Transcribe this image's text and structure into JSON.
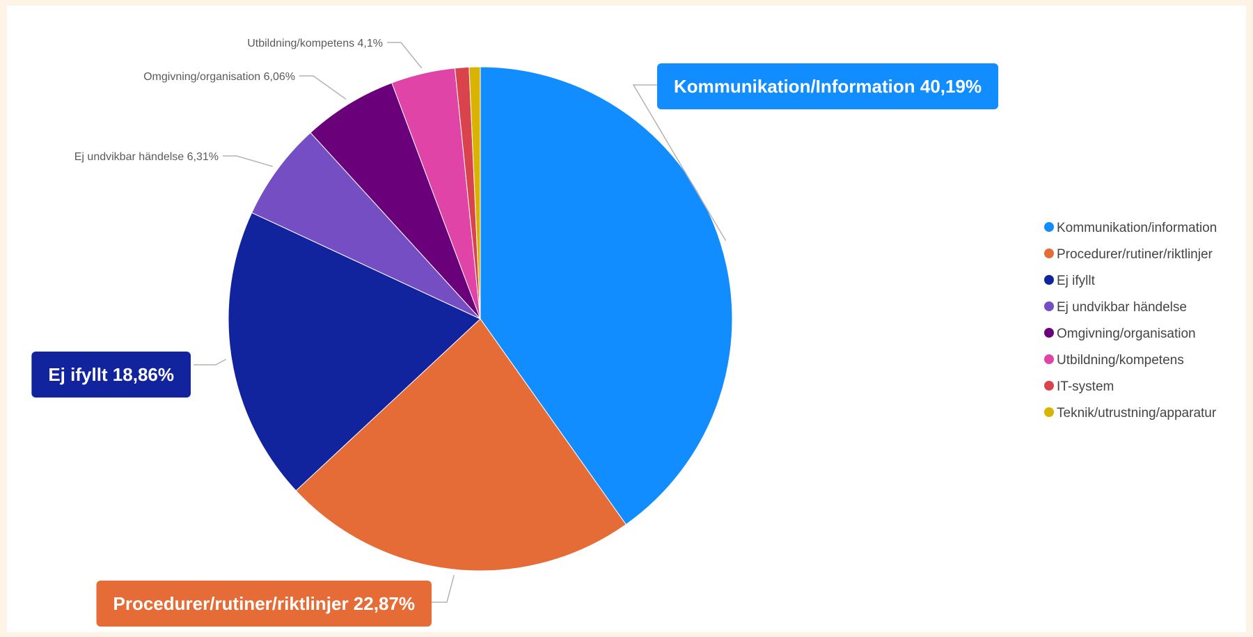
{
  "chart_data": {
    "type": "pie",
    "title": "",
    "slices": [
      {
        "legend": "Kommunikation/information",
        "label": "Kommunikation/Information 40,19%",
        "value": 40.19,
        "color": "#118dff",
        "callout": true
      },
      {
        "legend": "Procedurer/rutiner/riktlinjer",
        "label": "Procedurer/rutiner/riktlinjer 22,87%",
        "value": 22.87,
        "color": "#e66c37",
        "callout": true
      },
      {
        "legend": "Ej ifyllt",
        "label": "Ej ifyllt 18,86%",
        "value": 18.86,
        "color": "#12239e",
        "callout": true
      },
      {
        "legend": "Ej undvikbar händelse",
        "label": "Ej undvikbar händelse 6,31%",
        "value": 6.31,
        "color": "#744ec2",
        "callout": false
      },
      {
        "legend": "Omgivning/organisation",
        "label": "Omgivning/organisation 6,06%",
        "value": 6.06,
        "color": "#6b007b",
        "callout": false
      },
      {
        "legend": "Utbildning/kompetens",
        "label": "Utbildning/kompetens 4,1%",
        "value": 4.1,
        "color": "#e044a7",
        "callout": false
      },
      {
        "legend": "IT-system",
        "label": "",
        "value": 0.9,
        "color": "#d9434b",
        "callout": false
      },
      {
        "legend": "Teknik/utrustning/apparatur",
        "label": "",
        "value": 0.71,
        "color": "#d9b300",
        "callout": false
      }
    ],
    "legend_position": "right"
  }
}
